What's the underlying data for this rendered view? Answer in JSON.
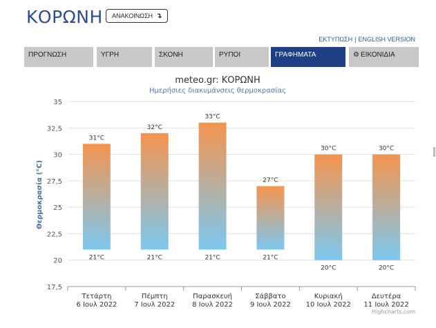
{
  "header": {
    "title": "ΚΟΡΩΝΗ",
    "announce_label": "ΑΝΑΚΟΙΝΩΣΗ",
    "announce_icon": "arrow-down-icon"
  },
  "top_links": {
    "print": "ΕΚΤΥΠΩΣΗ",
    "separator": "|",
    "english": "ENGLISH VERSION"
  },
  "tabs": [
    {
      "label": "ΠΡΟΓΝΩΣΗ",
      "active": false
    },
    {
      "label": "ΥΓΡΗ",
      "active": false
    },
    {
      "label": "ΣΚΟΝΗ",
      "active": false
    },
    {
      "label": "ΡΥΠΟΙ",
      "active": false
    },
    {
      "label": "ΓΡΑΦΗΜΑΤΑ",
      "active": true
    },
    {
      "label": "ΕΙΚΟΝΙΔΙΑ",
      "active": false,
      "icon": "gear-icon"
    }
  ],
  "colors": {
    "accent": "#1f3f85",
    "bar_top": "#f5944e",
    "bar_bottom": "#7cc8f0",
    "title_blue": "#2a4f8c"
  },
  "chart_data": {
    "type": "bar",
    "subtype": "floating-range",
    "title": "meteo.gr: ΚΟΡΩΝΗ",
    "subtitle": "Ημερήσιες διακυμάνσεις θερμοκρασίας",
    "ylabel": "Θερμοκρασία (°C)",
    "xlabel": "",
    "ylim": [
      17.5,
      35
    ],
    "yticks": [
      "17,5",
      "20",
      "22,5",
      "25",
      "27,5",
      "30",
      "32,5",
      "35"
    ],
    "categories": [
      {
        "day": "Τετάρτη",
        "date": "6 Ιουλ 2022"
      },
      {
        "day": "Πέμπτη",
        "date": "7 Ιουλ 2022"
      },
      {
        "day": "Παρασκευή",
        "date": "8 Ιουλ 2022"
      },
      {
        "day": "Σάββατο",
        "date": "9 Ιουλ 2022"
      },
      {
        "day": "Κυριακή",
        "date": "10 Ιουλ 2022"
      },
      {
        "day": "Δευτέρα",
        "date": "11 Ιουλ 2022"
      }
    ],
    "min": [
      21,
      21,
      21,
      21,
      20,
      20
    ],
    "max": [
      31,
      32,
      33,
      27,
      30,
      30
    ],
    "min_labels": [
      "21°C",
      "21°C",
      "21°C",
      "21°C",
      "20°C",
      "20°C"
    ],
    "max_labels": [
      "31°C",
      "32°C",
      "33°C",
      "27°C",
      "30°C",
      "30°C"
    ],
    "grid": true,
    "legend": "none",
    "credit": "Highcharts.com"
  }
}
